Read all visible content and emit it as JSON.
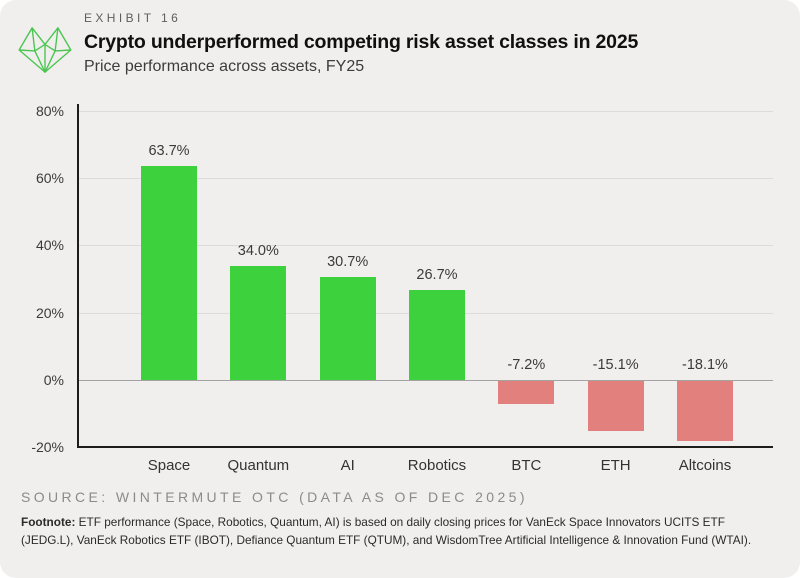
{
  "header": {
    "eyebrow": "EXHIBIT 16",
    "title": "Crypto underperformed competing risk asset classes in 2025",
    "subtitle": "Price performance across assets, FY25"
  },
  "logo": {
    "name": "wintermute-mark",
    "color": "#4bc551"
  },
  "chart_data": {
    "type": "bar",
    "title": "Crypto underperformed competing risk asset classes in 2025",
    "subtitle": "Price performance across assets, FY25",
    "categories": [
      "Space",
      "Quantum",
      "AI",
      "Robotics",
      "BTC",
      "ETH",
      "Altcoins"
    ],
    "values": [
      63.7,
      34.0,
      30.7,
      26.7,
      -7.2,
      -15.1,
      -18.1
    ],
    "value_labels": [
      "63.7%",
      "34.0%",
      "30.7%",
      "26.7%",
      "-7.2%",
      "-15.1%",
      "-18.1%"
    ],
    "xlabel": "",
    "ylabel": "",
    "ylim": [
      -20,
      80
    ],
    "yticks": [
      80,
      60,
      40,
      20,
      0,
      -20
    ],
    "ytick_labels": [
      "80%",
      "60%",
      "40%",
      "20%",
      "0%",
      "-20%"
    ],
    "grid": true,
    "legend": false,
    "positive_color": "#3dd23d",
    "negative_color": "#e2807e"
  },
  "source": "SOURCE: WINTERMUTE OTC (DATA AS OF DEC 2025)",
  "footnote": {
    "label": "Footnote:",
    "text": " ETF performance (Space, Robotics, Quantum, AI) is based on daily closing prices for VanEck Space Innovators UCITS ETF (JEDG.L), VanEck Robotics ETF (IBOT), Defiance Quantum ETF (QTUM), and WisdomTree Artificial Intelligence & Innovation Fund (WTAI)."
  }
}
